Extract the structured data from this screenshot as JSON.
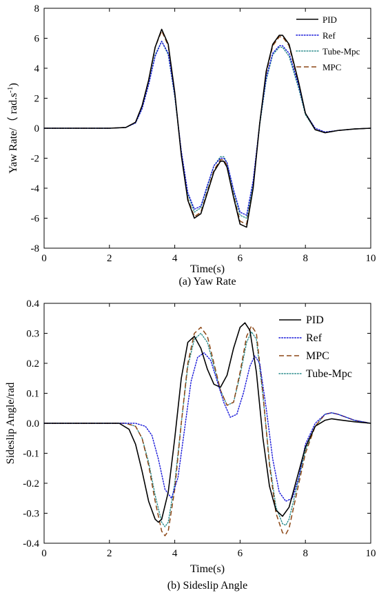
{
  "chart_data": [
    {
      "type": "line",
      "caption": "(a) Yaw Rate",
      "xlabel": "Time(s)",
      "ylabel": "Yaw Rate/（ rad.s",
      "ylabel_sup": "-1",
      "ylabel_close": ")",
      "xlim": [
        0,
        10
      ],
      "ylim": [
        -8,
        8
      ],
      "x_ticks": [
        "0",
        "2",
        "4",
        "6",
        "8",
        "10"
      ],
      "y_ticks": [
        "-8",
        "-6",
        "-4",
        "-2",
        "0",
        "2",
        "4",
        "6",
        "8"
      ],
      "legend_position": "top-right",
      "legend_order": [
        "PID",
        "Ref",
        "Tube-Mpc",
        "MPC"
      ],
      "series": [
        {
          "name": "PID",
          "color": "#000000",
          "style": "solid",
          "x": [
            0,
            2,
            2.5,
            2.8,
            3.0,
            3.2,
            3.4,
            3.6,
            3.8,
            4.0,
            4.2,
            4.4,
            4.6,
            4.8,
            5.0,
            5.2,
            5.4,
            5.5,
            5.6,
            5.8,
            6.0,
            6.2,
            6.4,
            6.6,
            6.8,
            7.0,
            7.2,
            7.3,
            7.5,
            7.8,
            8.0,
            8.3,
            8.6,
            9.0,
            9.5,
            10
          ],
          "y": [
            0,
            0,
            0.05,
            0.4,
            1.5,
            3.2,
            5.4,
            6.6,
            5.6,
            2.4,
            -1.8,
            -4.8,
            -6.0,
            -5.7,
            -4.3,
            -2.9,
            -2.2,
            -2.2,
            -2.6,
            -4.6,
            -6.4,
            -6.6,
            -4.0,
            0.3,
            3.8,
            5.6,
            6.2,
            6.2,
            5.6,
            3.0,
            1.0,
            -0.1,
            -0.3,
            -0.15,
            -0.05,
            0
          ]
        },
        {
          "name": "Ref",
          "color": "#1515d8",
          "style": "dotted",
          "x": [
            0,
            2,
            2.5,
            2.8,
            3.0,
            3.2,
            3.4,
            3.6,
            3.8,
            4.0,
            4.2,
            4.4,
            4.6,
            4.8,
            5.0,
            5.2,
            5.4,
            5.5,
            5.6,
            5.8,
            6.0,
            6.2,
            6.4,
            6.6,
            6.8,
            7.0,
            7.2,
            7.3,
            7.5,
            7.8,
            8.0,
            8.3,
            8.6,
            9.0,
            9.5,
            10
          ],
          "y": [
            0,
            0,
            0.05,
            0.35,
            1.3,
            2.9,
            4.8,
            5.8,
            5.0,
            2.2,
            -1.5,
            -4.3,
            -5.4,
            -5.2,
            -3.8,
            -2.5,
            -2.0,
            -2.0,
            -2.3,
            -4.1,
            -5.6,
            -5.8,
            -3.5,
            0.3,
            3.4,
            5.0,
            5.5,
            5.5,
            5.0,
            2.8,
            1.0,
            0.0,
            -0.25,
            -0.15,
            -0.05,
            0
          ]
        },
        {
          "name": "Tube-Mpc",
          "color": "#2a8c8c",
          "style": "dotted",
          "x": [
            0,
            2,
            2.5,
            2.8,
            3.0,
            3.2,
            3.4,
            3.6,
            3.8,
            4.0,
            4.2,
            4.4,
            4.6,
            4.8,
            5.0,
            5.2,
            5.4,
            5.5,
            5.6,
            5.8,
            6.0,
            6.2,
            6.4,
            6.6,
            6.8,
            7.0,
            7.2,
            7.3,
            7.5,
            7.8,
            8.0,
            8.3,
            8.6,
            9.0,
            9.5,
            10
          ],
          "y": [
            0,
            0,
            0.05,
            0.35,
            1.3,
            2.9,
            4.9,
            5.8,
            4.9,
            2.1,
            -1.6,
            -4.4,
            -5.6,
            -5.3,
            -3.9,
            -2.5,
            -1.9,
            -1.9,
            -2.3,
            -4.2,
            -5.8,
            -6.0,
            -3.7,
            0.2,
            3.2,
            4.9,
            5.4,
            5.4,
            4.8,
            2.6,
            0.9,
            -0.1,
            -0.3,
            -0.15,
            -0.05,
            0
          ]
        },
        {
          "name": "MPC",
          "color": "#8b4513",
          "style": "dashed",
          "x": [
            0,
            2,
            2.5,
            2.8,
            3.0,
            3.2,
            3.4,
            3.6,
            3.8,
            4.0,
            4.2,
            4.4,
            4.6,
            4.8,
            5.0,
            5.2,
            5.4,
            5.5,
            5.6,
            5.8,
            6.0,
            6.2,
            6.4,
            6.6,
            6.8,
            7.0,
            7.2,
            7.3,
            7.5,
            7.8,
            8.0,
            8.3,
            8.6,
            9.0,
            9.5,
            10
          ],
          "y": [
            0,
            0,
            0.05,
            0.4,
            1.5,
            3.2,
            5.4,
            6.5,
            5.5,
            2.3,
            -1.7,
            -4.7,
            -5.9,
            -5.6,
            -4.2,
            -2.8,
            -2.1,
            -2.1,
            -2.5,
            -4.5,
            -6.2,
            -6.4,
            -3.9,
            0.3,
            3.7,
            5.5,
            6.1,
            6.1,
            5.5,
            2.9,
            1.0,
            -0.1,
            -0.3,
            -0.15,
            -0.05,
            0
          ]
        }
      ]
    },
    {
      "type": "line",
      "caption": "(b) Sideslip Angle",
      "xlabel": "Time(s)",
      "ylabel": "Sideslip Angle/rad",
      "xlim": [
        0,
        10
      ],
      "ylim": [
        -0.4,
        0.4
      ],
      "x_ticks": [
        "0",
        "2",
        "4",
        "6",
        "8",
        "10"
      ],
      "y_ticks": [
        "-0.4",
        "-0.3",
        "-0.2",
        "-0.1",
        "0.0",
        "0.1",
        "0.2",
        "0.3",
        "0.4"
      ],
      "legend_position": "top-right",
      "legend_order": [
        "PID",
        "Ref",
        "MPC",
        "Tube-Mpc"
      ],
      "series": [
        {
          "name": "PID",
          "color": "#000000",
          "style": "solid",
          "x": [
            0,
            2.3,
            2.6,
            2.8,
            3.0,
            3.2,
            3.4,
            3.5,
            3.6,
            3.8,
            4.0,
            4.2,
            4.4,
            4.6,
            4.8,
            5.0,
            5.2,
            5.4,
            5.6,
            5.8,
            6.0,
            6.15,
            6.3,
            6.5,
            6.7,
            6.9,
            7.1,
            7.3,
            7.5,
            7.7,
            8.0,
            8.3,
            8.6,
            8.8,
            9.0,
            9.5,
            10
          ],
          "y": [
            0,
            0,
            -0.02,
            -0.07,
            -0.16,
            -0.26,
            -0.32,
            -0.33,
            -0.32,
            -0.23,
            -0.05,
            0.15,
            0.27,
            0.29,
            0.25,
            0.18,
            0.13,
            0.12,
            0.16,
            0.25,
            0.32,
            0.335,
            0.31,
            0.17,
            -0.05,
            -0.21,
            -0.29,
            -0.31,
            -0.28,
            -0.2,
            -0.08,
            -0.01,
            0.01,
            0.015,
            0.012,
            0.005,
            0
          ]
        },
        {
          "name": "Ref",
          "color": "#1515d8",
          "style": "dotted",
          "x": [
            0,
            2.8,
            3.1,
            3.3,
            3.5,
            3.7,
            3.9,
            4.1,
            4.3,
            4.5,
            4.7,
            4.9,
            5.1,
            5.3,
            5.5,
            5.7,
            5.9,
            6.1,
            6.3,
            6.45,
            6.6,
            6.8,
            7.0,
            7.2,
            7.4,
            7.6,
            7.8,
            8.0,
            8.3,
            8.6,
            8.8,
            9.0,
            9.5,
            10
          ],
          "y": [
            0,
            0,
            -0.01,
            -0.04,
            -0.12,
            -0.22,
            -0.25,
            -0.18,
            -0.02,
            0.14,
            0.22,
            0.235,
            0.21,
            0.14,
            0.07,
            0.02,
            0.03,
            0.1,
            0.19,
            0.225,
            0.2,
            0.05,
            -0.12,
            -0.23,
            -0.26,
            -0.25,
            -0.18,
            -0.07,
            0.0,
            0.03,
            0.035,
            0.03,
            0.01,
            0
          ]
        },
        {
          "name": "MPC",
          "color": "#8b4513",
          "style": "dashed",
          "x": [
            0,
            2.5,
            2.8,
            3.0,
            3.2,
            3.4,
            3.6,
            3.7,
            3.8,
            4.0,
            4.2,
            4.4,
            4.6,
            4.8,
            5.0,
            5.2,
            5.4,
            5.6,
            5.8,
            6.0,
            6.2,
            6.35,
            6.5,
            6.7,
            6.9,
            7.1,
            7.3,
            7.4,
            7.5,
            7.7,
            8.0,
            8.3,
            8.6,
            8.8,
            9.0,
            9.5,
            10
          ],
          "y": [
            0,
            0,
            -0.01,
            -0.05,
            -0.14,
            -0.26,
            -0.36,
            -0.375,
            -0.36,
            -0.22,
            0.0,
            0.2,
            0.3,
            0.32,
            0.29,
            0.2,
            0.11,
            0.06,
            0.07,
            0.17,
            0.29,
            0.325,
            0.3,
            0.1,
            -0.14,
            -0.3,
            -0.365,
            -0.37,
            -0.35,
            -0.25,
            -0.1,
            -0.01,
            0.03,
            0.035,
            0.03,
            0.01,
            0
          ]
        },
        {
          "name": "Tube-Mpc",
          "color": "#2a8c8c",
          "style": "dotted",
          "x": [
            0,
            2.5,
            2.8,
            3.0,
            3.2,
            3.4,
            3.6,
            3.7,
            3.8,
            4.0,
            4.2,
            4.4,
            4.6,
            4.8,
            5.0,
            5.2,
            5.4,
            5.6,
            5.8,
            6.0,
            6.2,
            6.35,
            6.5,
            6.7,
            6.9,
            7.1,
            7.3,
            7.4,
            7.5,
            7.7,
            8.0,
            8.3,
            8.6,
            8.8,
            9.0,
            9.5,
            10
          ],
          "y": [
            0,
            0,
            -0.01,
            -0.05,
            -0.13,
            -0.24,
            -0.33,
            -0.345,
            -0.33,
            -0.2,
            0.0,
            0.19,
            0.28,
            0.3,
            0.27,
            0.19,
            0.11,
            0.06,
            0.07,
            0.16,
            0.27,
            0.305,
            0.28,
            0.09,
            -0.13,
            -0.28,
            -0.335,
            -0.34,
            -0.32,
            -0.23,
            -0.09,
            -0.01,
            0.03,
            0.035,
            0.03,
            0.01,
            0
          ]
        }
      ]
    }
  ]
}
